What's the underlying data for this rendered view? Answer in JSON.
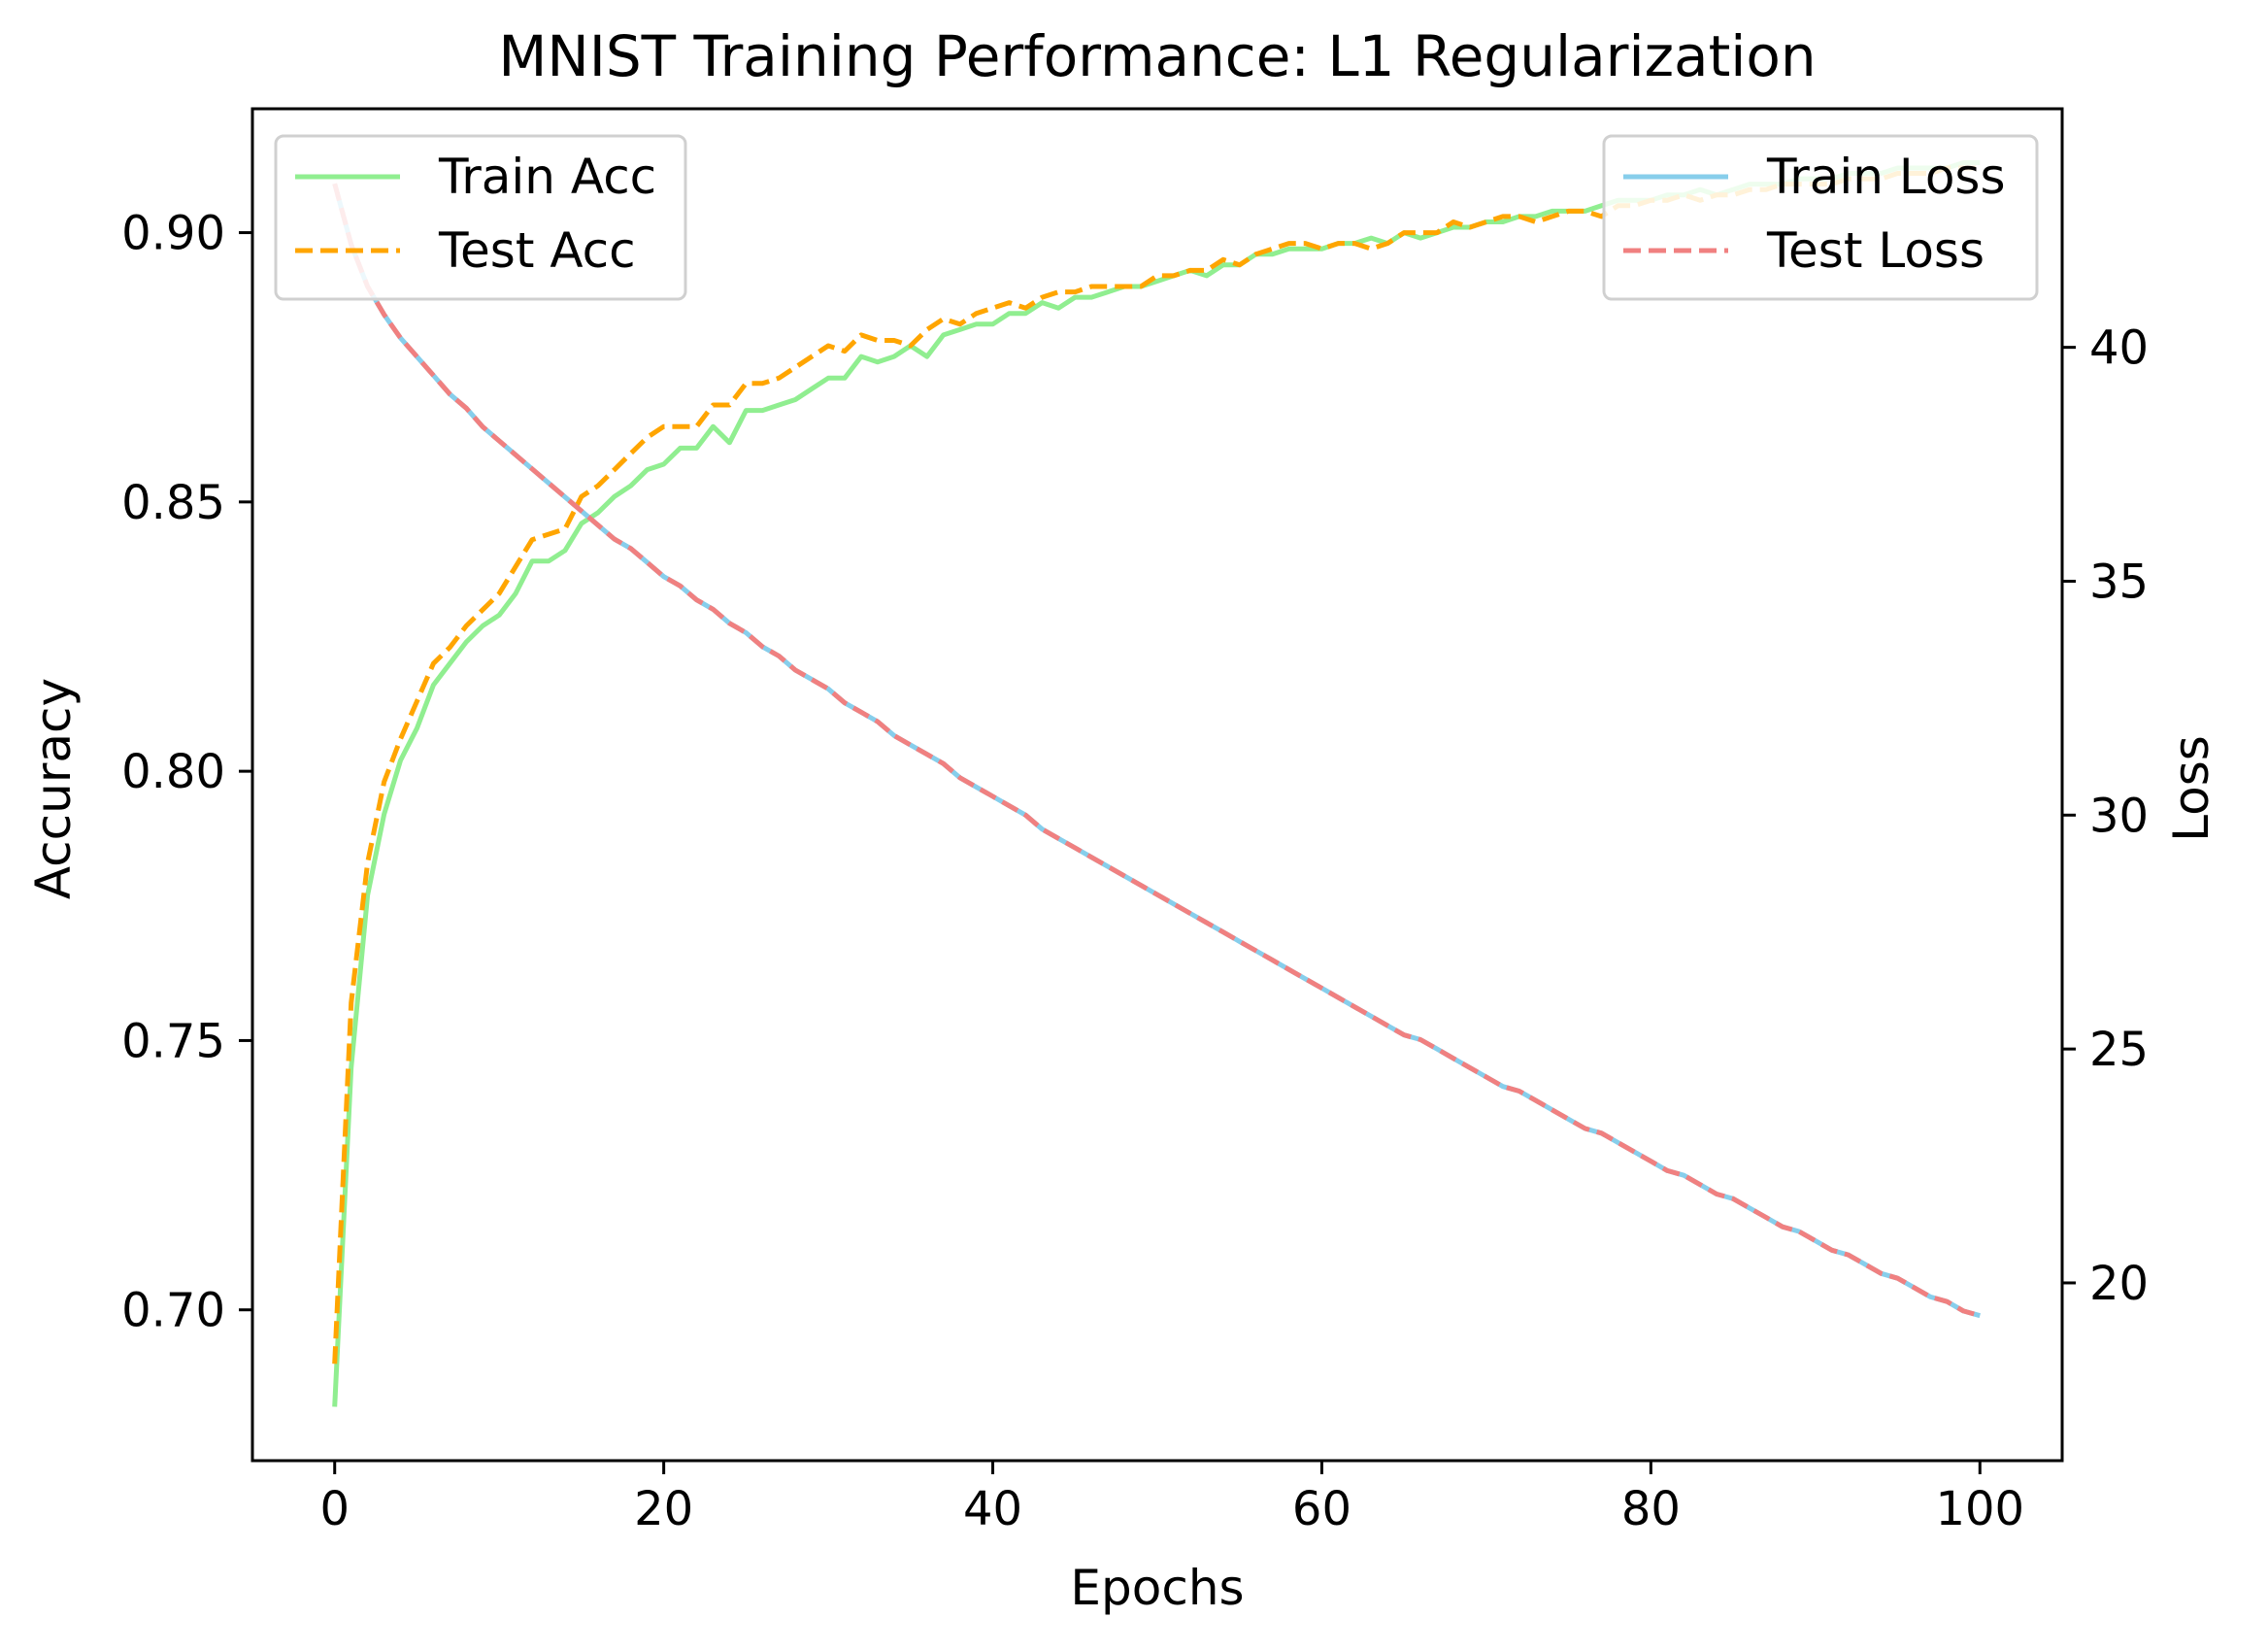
{
  "chart_data": {
    "type": "line",
    "title": "MNIST Training Performance: L1 Regularization",
    "xlabel": "Epochs",
    "ylabel_left": "Accuracy",
    "ylabel_right": "Loss",
    "xlim": [
      -5,
      105
    ],
    "ylim_left": [
      0.672,
      0.923
    ],
    "ylim_right": [
      16.2,
      45.1
    ],
    "xticks": [
      0,
      20,
      40,
      60,
      80,
      100
    ],
    "xtick_labels": [
      "0",
      "20",
      "40",
      "60",
      "80",
      "100"
    ],
    "yticks_left": [
      0.7,
      0.75,
      0.8,
      0.85,
      0.9
    ],
    "ytick_labels_left": [
      "0.70",
      "0.75",
      "0.80",
      "0.85",
      "0.90"
    ],
    "yticks_right": [
      20,
      25,
      30,
      35,
      40
    ],
    "ytick_labels_right": [
      "20",
      "25",
      "30",
      "35",
      "40"
    ],
    "grid": false,
    "legend_left_position": "top-left",
    "legend_right_position": "top-right",
    "colors": {
      "train_acc": "#90ee90",
      "test_acc": "#ffa500",
      "train_loss": "#87ceeb",
      "test_loss": "#f08080"
    },
    "x": [
      0,
      1,
      2,
      3,
      4,
      5,
      6,
      7,
      8,
      9,
      10,
      11,
      12,
      13,
      14,
      15,
      16,
      17,
      18,
      19,
      20,
      21,
      22,
      23,
      24,
      25,
      26,
      27,
      28,
      29,
      30,
      31,
      32,
      33,
      34,
      35,
      36,
      37,
      38,
      39,
      40,
      41,
      42,
      43,
      44,
      45,
      46,
      47,
      48,
      49,
      50,
      51,
      52,
      53,
      54,
      55,
      56,
      57,
      58,
      59,
      60,
      61,
      62,
      63,
      64,
      65,
      66,
      67,
      68,
      69,
      70,
      71,
      72,
      73,
      74,
      75,
      76,
      77,
      78,
      79,
      80,
      81,
      82,
      83,
      84,
      85,
      86,
      87,
      88,
      89,
      90,
      91,
      92,
      93,
      94,
      95,
      96,
      97,
      98,
      99,
      100
    ],
    "series": [
      {
        "name": "Train Acc",
        "axis": "left",
        "style": "solid",
        "values": [
          0.682,
          0.745,
          0.777,
          0.792,
          0.802,
          0.808,
          0.816,
          0.82,
          0.824,
          0.827,
          0.829,
          0.833,
          0.839,
          0.839,
          0.841,
          0.846,
          0.848,
          0.851,
          0.853,
          0.856,
          0.857,
          0.86,
          0.86,
          0.864,
          0.861,
          0.867,
          0.867,
          0.868,
          0.869,
          0.871,
          0.873,
          0.873,
          0.877,
          0.876,
          0.877,
          0.879,
          0.877,
          0.881,
          0.882,
          0.883,
          0.883,
          0.885,
          0.885,
          0.887,
          0.886,
          0.888,
          0.888,
          0.889,
          0.89,
          0.89,
          0.891,
          0.892,
          0.893,
          0.892,
          0.894,
          0.894,
          0.896,
          0.896,
          0.897,
          0.897,
          0.897,
          0.898,
          0.898,
          0.899,
          0.898,
          0.9,
          0.899,
          0.9,
          0.901,
          0.901,
          0.902,
          0.902,
          0.903,
          0.903,
          0.904,
          0.904,
          0.904,
          0.905,
          0.906,
          0.906,
          0.906,
          0.907,
          0.907,
          0.908,
          0.907,
          0.908,
          0.909,
          0.909,
          0.909,
          0.91,
          0.91,
          0.91,
          0.911,
          0.911,
          0.911,
          0.912,
          0.912,
          0.912,
          0.912,
          0.913,
          0.913
        ]
      },
      {
        "name": "Test Acc",
        "axis": "left",
        "style": "dashed",
        "values": [
          0.69,
          0.757,
          0.783,
          0.798,
          0.806,
          0.813,
          0.82,
          0.823,
          0.827,
          0.83,
          0.833,
          0.838,
          0.843,
          0.844,
          0.845,
          0.851,
          0.853,
          0.856,
          0.859,
          0.862,
          0.864,
          0.864,
          0.864,
          0.868,
          0.868,
          0.872,
          0.872,
          0.873,
          0.875,
          0.877,
          0.879,
          0.878,
          0.881,
          0.88,
          0.88,
          0.879,
          0.882,
          0.884,
          0.883,
          0.885,
          0.886,
          0.887,
          0.886,
          0.888,
          0.889,
          0.889,
          0.89,
          0.89,
          0.89,
          0.89,
          0.892,
          0.892,
          0.893,
          0.893,
          0.895,
          0.894,
          0.896,
          0.897,
          0.898,
          0.898,
          0.897,
          0.898,
          0.898,
          0.897,
          0.898,
          0.9,
          0.9,
          0.9,
          0.902,
          0.901,
          0.902,
          0.903,
          0.903,
          0.902,
          0.903,
          0.904,
          0.904,
          0.903,
          0.905,
          0.905,
          0.906,
          0.906,
          0.907,
          0.906,
          0.907,
          0.907,
          0.908,
          0.908,
          0.909,
          0.909,
          0.909,
          0.909,
          0.91,
          0.91,
          0.91,
          0.911,
          0.911,
          0.911,
          0.912,
          0.912,
          0.912
        ]
      },
      {
        "name": "Train Loss",
        "axis": "right",
        "style": "solid",
        "values": [
          43.5,
          42.2,
          41.3,
          40.7,
          40.2,
          39.8,
          39.4,
          39.0,
          38.7,
          38.3,
          38.0,
          37.7,
          37.4,
          37.1,
          36.8,
          36.5,
          36.2,
          35.9,
          35.7,
          35.4,
          35.1,
          34.9,
          34.6,
          34.4,
          34.1,
          33.9,
          33.6,
          33.4,
          33.1,
          32.9,
          32.7,
          32.4,
          32.2,
          32.0,
          31.7,
          31.5,
          31.3,
          31.1,
          30.8,
          30.6,
          30.4,
          30.2,
          30.0,
          29.7,
          29.5,
          29.3,
          29.1,
          28.9,
          28.7,
          28.5,
          28.3,
          28.1,
          27.9,
          27.7,
          27.5,
          27.3,
          27.1,
          26.9,
          26.7,
          26.5,
          26.3,
          26.1,
          25.9,
          25.7,
          25.5,
          25.3,
          25.2,
          25.0,
          24.8,
          24.6,
          24.4,
          24.2,
          24.1,
          23.9,
          23.7,
          23.5,
          23.3,
          23.2,
          23.0,
          22.8,
          22.6,
          22.4,
          22.3,
          22.1,
          21.9,
          21.8,
          21.6,
          21.4,
          21.2,
          21.1,
          20.9,
          20.7,
          20.6,
          20.4,
          20.2,
          20.1,
          19.9,
          19.7,
          19.6,
          19.4,
          19.3
        ]
      },
      {
        "name": "Test Loss",
        "axis": "right",
        "style": "dashed",
        "values": [
          43.5,
          42.2,
          41.3,
          40.7,
          40.2,
          39.8,
          39.4,
          39.0,
          38.7,
          38.3,
          38.0,
          37.7,
          37.4,
          37.1,
          36.8,
          36.5,
          36.2,
          35.9,
          35.7,
          35.4,
          35.1,
          34.9,
          34.6,
          34.4,
          34.1,
          33.9,
          33.6,
          33.4,
          33.1,
          32.9,
          32.7,
          32.4,
          32.2,
          32.0,
          31.7,
          31.5,
          31.3,
          31.1,
          30.8,
          30.6,
          30.4,
          30.2,
          30.0,
          29.7,
          29.5,
          29.3,
          29.1,
          28.9,
          28.7,
          28.5,
          28.3,
          28.1,
          27.9,
          27.7,
          27.5,
          27.3,
          27.1,
          26.9,
          26.7,
          26.5,
          26.3,
          26.1,
          25.9,
          25.7,
          25.5,
          25.3,
          25.2,
          25.0,
          24.8,
          24.6,
          24.4,
          24.2,
          24.1,
          23.9,
          23.7,
          23.5,
          23.3,
          23.2,
          23.0,
          22.8,
          22.6,
          22.4,
          22.3,
          22.1,
          21.9,
          21.8,
          21.6,
          21.4,
          21.2,
          21.1,
          20.9,
          20.7,
          20.6,
          20.4,
          20.2,
          20.1,
          19.9,
          19.7,
          19.6,
          19.4,
          19.3
        ]
      }
    ]
  }
}
